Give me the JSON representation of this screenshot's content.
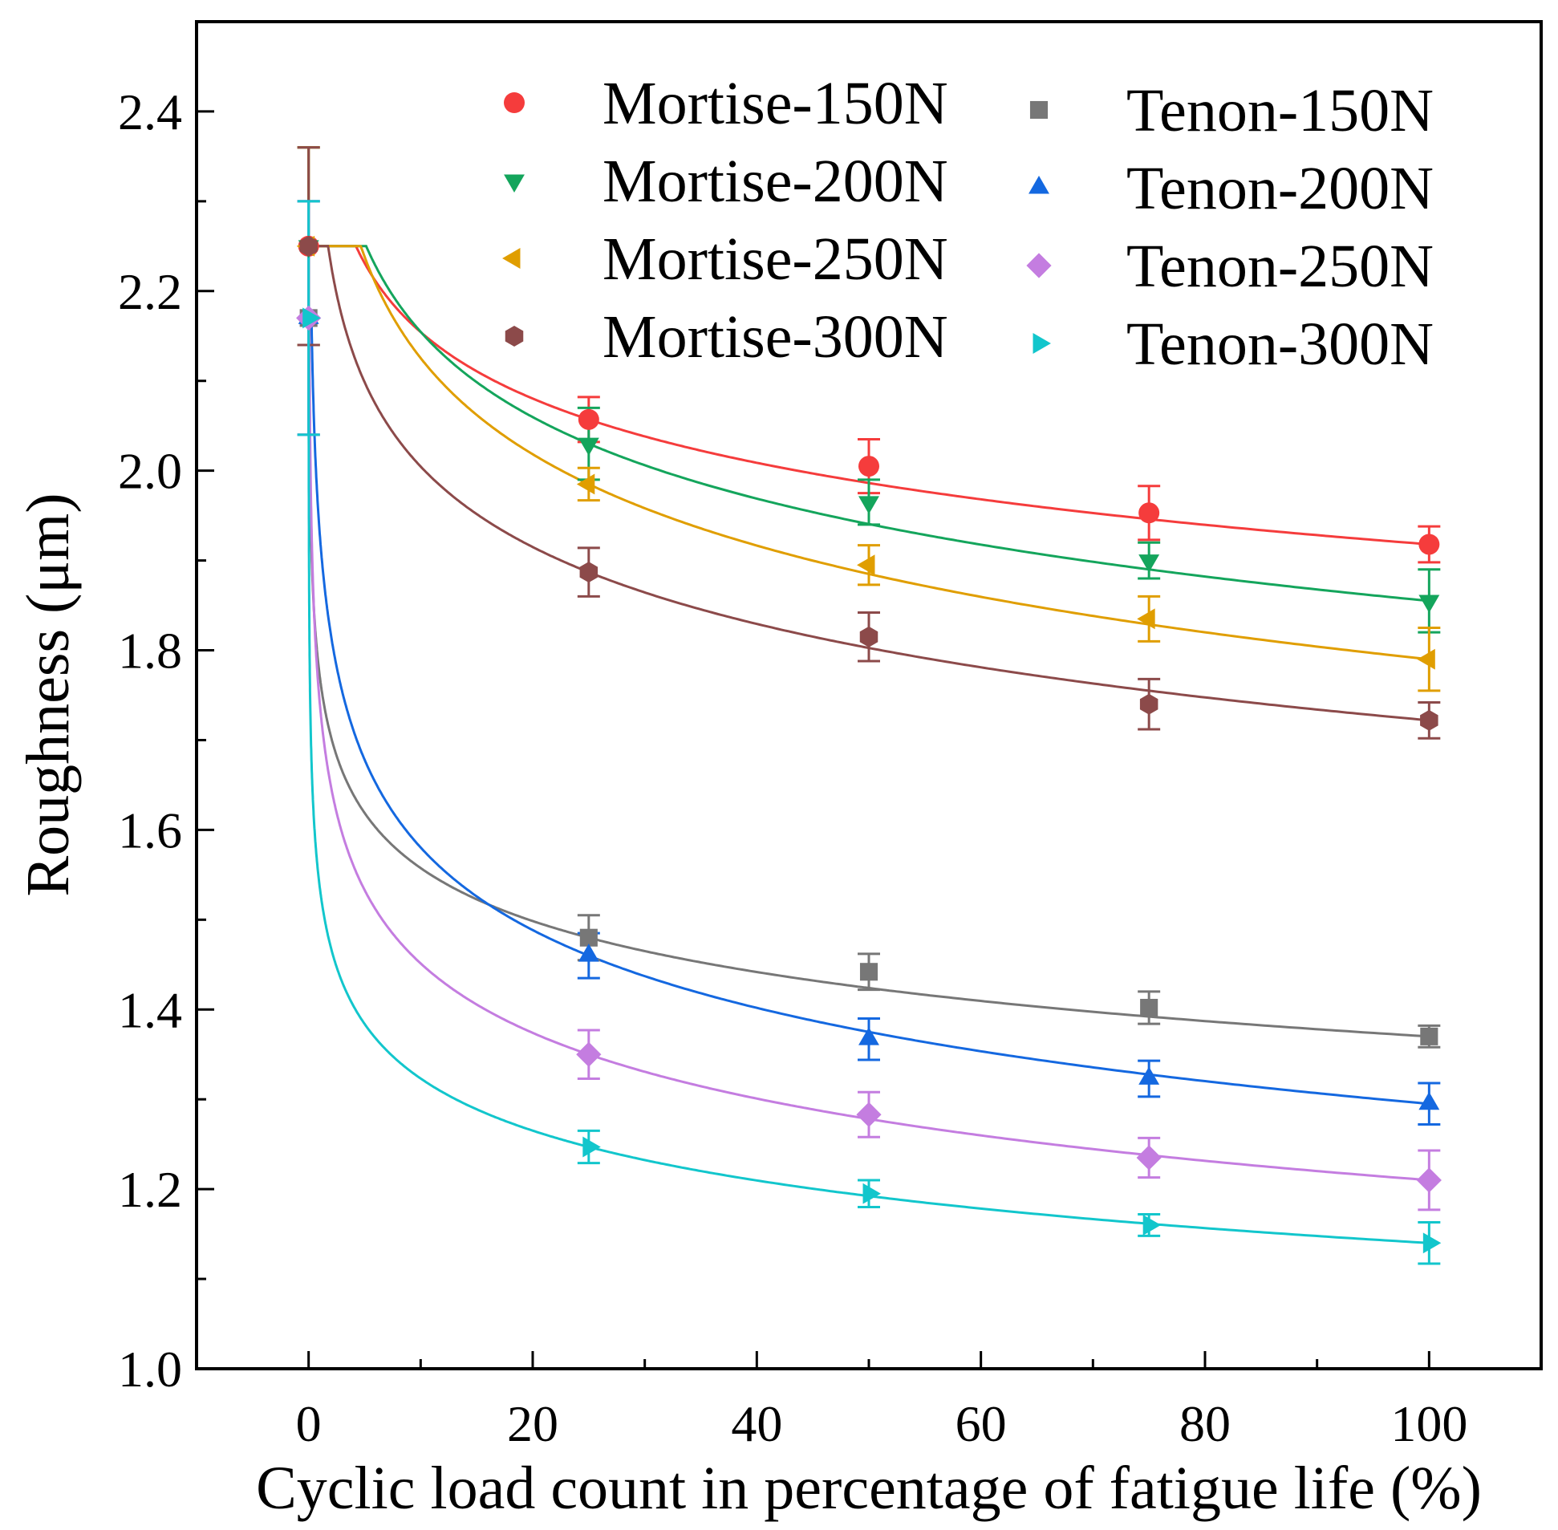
{
  "chart_data": {
    "type": "scatter",
    "title": "",
    "xlabel": "Cyclic load count in percentage of fatigue life (%)",
    "ylabel": "Roughness (μm)",
    "xlim": [
      -10,
      110
    ],
    "ylim": [
      1.0,
      2.5
    ],
    "xticks": [
      0,
      20,
      40,
      60,
      80,
      100
    ],
    "xtick_labels": [
      "0",
      "20",
      "40",
      "60",
      "80",
      "100"
    ],
    "yticks": [
      1.0,
      1.2,
      1.4,
      1.6,
      1.8,
      2.0,
      2.2,
      2.4
    ],
    "ytick_labels": [
      "1.0",
      "1.2",
      "1.4",
      "1.6",
      "1.8",
      "2.0",
      "2.2",
      "2.4"
    ],
    "grid": false,
    "legend_position": "top-right",
    "x": [
      0,
      25,
      50,
      75,
      100
    ],
    "series": [
      {
        "name": "Mortise-150N",
        "color": "#f53c3c",
        "marker": "circle",
        "values": [
          2.25,
          2.057,
          2.005,
          1.953,
          1.918
        ],
        "errors": [
          0.11,
          0.025,
          0.03,
          0.03,
          0.02
        ]
      },
      {
        "name": "Mortise-200N",
        "color": "#14a55c",
        "marker": "triangle-down",
        "values": [
          2.25,
          2.03,
          1.965,
          1.9,
          1.855
        ],
        "errors": [
          0.11,
          0.04,
          0.025,
          0.02,
          0.035
        ]
      },
      {
        "name": "Mortise-250N",
        "color": "#e09e00",
        "marker": "triangle-left",
        "values": [
          2.25,
          1.985,
          1.895,
          1.835,
          1.79
        ],
        "errors": [
          0.11,
          0.018,
          0.022,
          0.025,
          0.035
        ]
      },
      {
        "name": "Mortise-300N",
        "color": "#8c4a4a",
        "marker": "hexagon",
        "values": [
          2.25,
          1.887,
          1.815,
          1.74,
          1.722
        ],
        "errors": [
          0.11,
          0.027,
          0.027,
          0.028,
          0.02
        ]
      },
      {
        "name": "Tenon-150N",
        "color": "#777777",
        "marker": "square",
        "values": [
          2.17,
          1.48,
          1.442,
          1.402,
          1.37
        ],
        "errors": [
          0.13,
          0.025,
          0.02,
          0.018,
          0.012
        ]
      },
      {
        "name": "Tenon-200N",
        "color": "#1468e0",
        "marker": "triangle-up",
        "values": [
          2.17,
          1.46,
          1.367,
          1.323,
          1.295
        ],
        "errors": [
          0.13,
          0.025,
          0.023,
          0.02,
          0.023
        ]
      },
      {
        "name": "Tenon-250N",
        "color": "#c47de0",
        "marker": "diamond",
        "values": [
          2.17,
          1.35,
          1.283,
          1.235,
          1.21
        ],
        "errors": [
          0.13,
          0.027,
          0.025,
          0.022,
          0.033
        ]
      },
      {
        "name": "Tenon-300N",
        "color": "#12c6cc",
        "marker": "triangle-right",
        "values": [
          2.17,
          1.247,
          1.195,
          1.16,
          1.14
        ],
        "errors": [
          0.13,
          0.018,
          0.015,
          0.012,
          0.023
        ]
      }
    ]
  }
}
